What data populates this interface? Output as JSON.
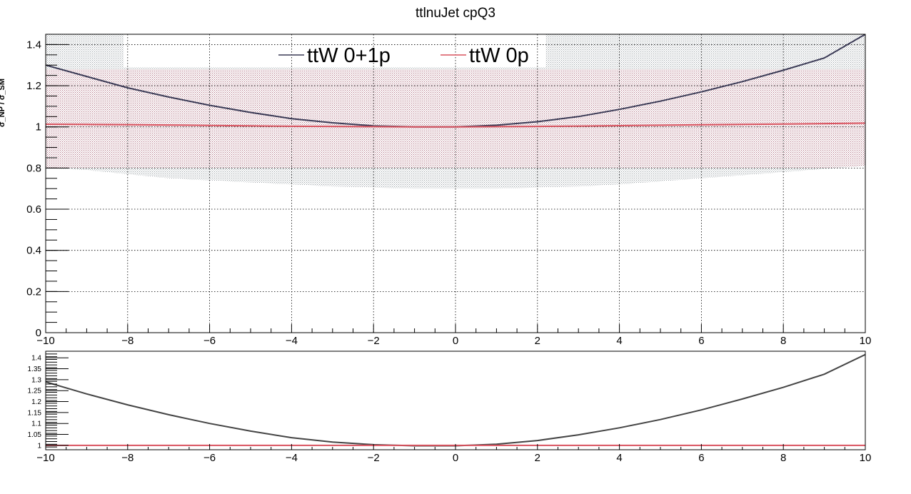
{
  "chart_data": [
    {
      "type": "line",
      "title": "ttlnuJet cpQ3",
      "ylabel": "σ_NP / σ_SM",
      "xlim": [
        -10,
        10
      ],
      "ylim": [
        0,
        1.45
      ],
      "x_ticks": [
        -10,
        -8,
        -6,
        -4,
        -2,
        0,
        2,
        4,
        6,
        8,
        10
      ],
      "y_ticks": [
        0,
        0.2,
        0.4,
        0.6,
        0.8,
        1,
        1.2,
        1.4
      ],
      "x_tick_labels": [
        "−10",
        "−8",
        "−6",
        "−4",
        "−2",
        "0",
        "2",
        "4",
        "6",
        "8",
        "10"
      ],
      "y_tick_labels": [
        "0",
        "0.2",
        "0.4",
        "0.6",
        "0.8",
        "1",
        "1.2",
        "1.4"
      ],
      "grid": true,
      "legend_position": "top-center",
      "x": [
        -10,
        -9,
        -8,
        -7,
        -6,
        -5,
        -4,
        -3,
        -2,
        -1,
        0,
        1,
        2,
        3,
        4,
        5,
        6,
        7,
        8,
        9,
        10
      ],
      "series": [
        {
          "name": "ttW 0+1p",
          "color": "#3a3a55",
          "values": [
            1.3,
            1.245,
            1.19,
            1.145,
            1.105,
            1.07,
            1.04,
            1.02,
            1.005,
            1.0,
            1.0,
            1.008,
            1.025,
            1.05,
            1.085,
            1.125,
            1.17,
            1.22,
            1.275,
            1.335,
            1.45
          ],
          "band_upper": [
            1.45,
            1.45,
            1.45,
            1.45,
            1.45,
            1.45,
            1.45,
            1.45,
            1.45,
            1.45,
            1.45,
            1.45,
            1.45,
            1.45,
            1.45,
            1.45,
            1.45,
            1.45,
            1.45,
            1.45,
            1.45
          ],
          "band_lower": [
            0.8,
            0.79,
            0.77,
            0.75,
            0.74,
            0.73,
            0.72,
            0.71,
            0.705,
            0.7,
            0.7,
            0.7,
            0.705,
            0.71,
            0.72,
            0.735,
            0.75,
            0.765,
            0.78,
            0.795,
            0.81
          ],
          "band_color": "#b9c0c6"
        },
        {
          "name": "ttW 0p",
          "color": "#d9535f",
          "values": [
            1.013,
            1.012,
            1.011,
            1.009,
            1.007,
            1.005,
            1.003,
            1.002,
            1.001,
            1.0,
            1.0,
            1.001,
            1.002,
            1.004,
            1.006,
            1.008,
            1.01,
            1.012,
            1.014,
            1.016,
            1.018
          ],
          "band_upper": [
            1.28,
            1.28,
            1.28,
            1.28,
            1.28,
            1.28,
            1.28,
            1.28,
            1.28,
            1.28,
            1.28,
            1.28,
            1.28,
            1.28,
            1.28,
            1.28,
            1.28,
            1.28,
            1.28,
            1.28,
            1.28
          ],
          "band_lower": [
            0.8,
            0.8,
            0.8,
            0.8,
            0.8,
            0.8,
            0.8,
            0.8,
            0.8,
            0.8,
            0.8,
            0.8,
            0.8,
            0.8,
            0.8,
            0.8,
            0.8,
            0.8,
            0.8,
            0.8,
            0.81
          ],
          "band_color": "#c9a0ac"
        }
      ],
      "legend_bg_y": 1.29
    },
    {
      "type": "line",
      "title": "",
      "xlim": [
        -10,
        10
      ],
      "ylim": [
        0.98,
        1.43
      ],
      "x_ticks": [
        -10,
        -8,
        -6,
        -4,
        -2,
        0,
        2,
        4,
        6,
        8,
        10
      ],
      "y_ticks": [
        1,
        1.05,
        1.1,
        1.15,
        1.2,
        1.25,
        1.3,
        1.35,
        1.4
      ],
      "x_tick_labels": [
        "−10",
        "−8",
        "−6",
        "−4",
        "−2",
        "0",
        "2",
        "4",
        "6",
        "8",
        "10"
      ],
      "y_tick_labels": [
        "1",
        "1.05",
        "1.1",
        "1.15",
        "1.2",
        "1.25",
        "1.3",
        "1.35",
        "1.4"
      ],
      "grid": false,
      "x": [
        -10,
        -9,
        -8,
        -7,
        -6,
        -5,
        -4,
        -3,
        -2,
        -1,
        0,
        1,
        2,
        3,
        4,
        5,
        6,
        7,
        8,
        9,
        10
      ],
      "series": [
        {
          "color": "#444444",
          "values": [
            1.29,
            1.235,
            1.185,
            1.14,
            1.1,
            1.065,
            1.035,
            1.015,
            1.003,
            0.998,
            0.998,
            1.005,
            1.022,
            1.048,
            1.08,
            1.118,
            1.162,
            1.212,
            1.265,
            1.325,
            1.415
          ]
        },
        {
          "color": "#d9535f",
          "values": [
            1.0,
            1.0,
            1.0,
            1.0,
            1.0,
            1.0,
            1.0,
            1.0,
            1.0,
            1.0,
            1.0,
            1.0,
            1.0,
            1.0,
            1.0,
            1.0,
            1.0,
            1.0,
            1.0,
            1.0,
            1.0
          ]
        }
      ]
    }
  ]
}
